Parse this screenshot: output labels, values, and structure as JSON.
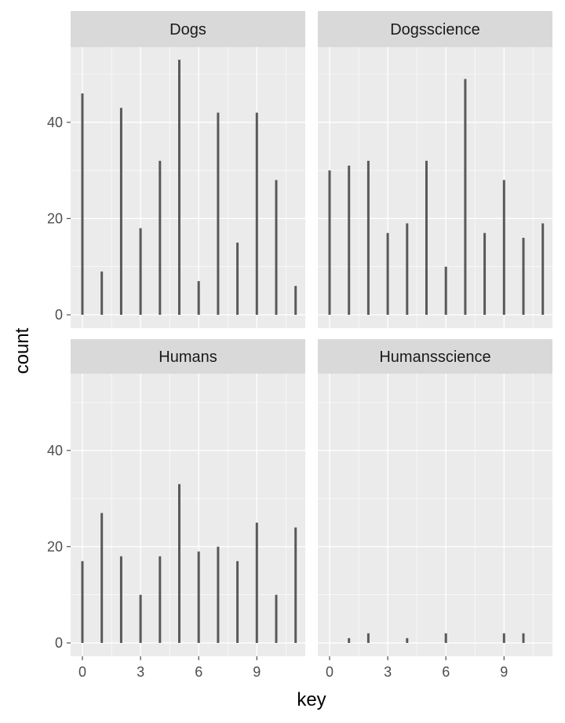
{
  "chart_data": {
    "type": "bar",
    "xlabel": "key",
    "ylabel": "count",
    "x": [
      0,
      1,
      2,
      3,
      4,
      5,
      6,
      7,
      8,
      9,
      10,
      11
    ],
    "xticks": [
      0,
      3,
      6,
      9
    ],
    "xlim": [
      -0.6,
      11.6
    ],
    "ylim": [
      0,
      57
    ],
    "yticks": [
      0,
      20,
      40
    ],
    "grid": true,
    "panels": [
      {
        "name": "Dogs",
        "values": [
          46,
          9,
          43,
          18,
          32,
          53,
          7,
          42,
          15,
          42,
          28,
          6
        ]
      },
      {
        "name": "Dogsscience",
        "values": [
          30,
          31,
          32,
          17,
          19,
          32,
          10,
          49,
          17,
          28,
          16,
          19
        ]
      },
      {
        "name": "Humans",
        "values": [
          17,
          27,
          18,
          10,
          18,
          33,
          19,
          20,
          17,
          25,
          10,
          24
        ]
      },
      {
        "name": "Humansscience",
        "values": [
          0,
          1,
          2,
          0,
          1,
          0,
          2,
          0,
          0,
          2,
          2,
          0
        ]
      }
    ]
  },
  "colors": {
    "panel_bg": "#ebebeb",
    "strip_bg": "#d9d9d9",
    "grid_major": "#ffffff",
    "bar": "#595959",
    "tick": "#4d4d4d"
  }
}
